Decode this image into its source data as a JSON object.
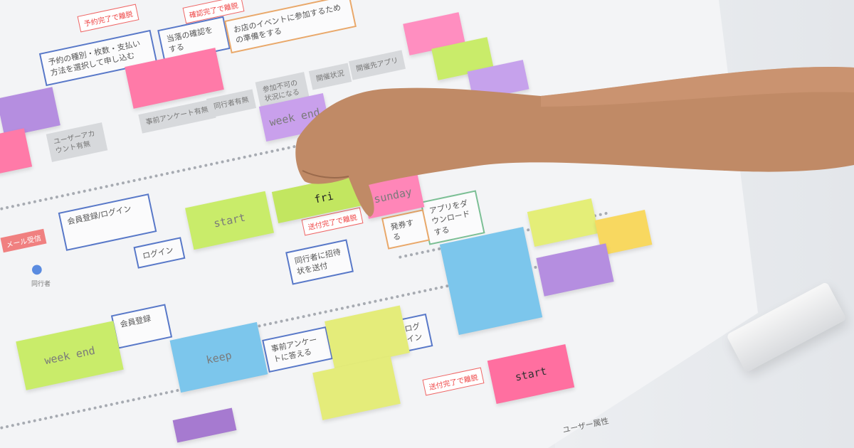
{
  "scene": "flowchart-with-sticky-notes",
  "colors": {
    "paper": "#f3f4f6",
    "box_border": "#5878c8",
    "tag": "#e44444",
    "skin": "#c08a66",
    "pink": "#ff7aa8",
    "lime": "#c9ec6a",
    "yellow": "#e4ec7a",
    "blue": "#7cc6ec",
    "purple": "#b58ee0"
  },
  "tags": [
    "予約完了で離脱",
    "確認完了で離脱",
    "送付完了で離脱",
    "送付完了で離脱"
  ],
  "boxes": [
    "予約の種別・枚数・支払い方法を選択して申し込む",
    "当落の確認をする",
    "お店のイベントに参加するための準備をする",
    "会員登録/ログイン",
    "ログイン",
    "同行者に招待状を送付",
    "事前アンケートに答える",
    "ログイン",
    "アプリをダウンロードする",
    "発券する",
    "会員登録"
  ],
  "gray": [
    "事前アンケート有無",
    "同行者有無",
    "参加不可の状況になる",
    "ユーザーアカウント有無",
    "開催状況",
    "開催先アプリ"
  ],
  "notes": [
    "start",
    "fri",
    "week end",
    "keep",
    "start",
    "week end",
    "sunday"
  ],
  "misc": {
    "persona": "同行者",
    "mail": "メール受信",
    "user": "ユーザー属性"
  }
}
